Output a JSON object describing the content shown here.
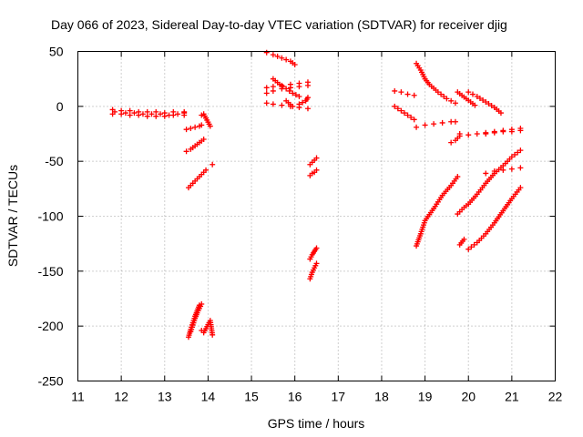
{
  "chart_data": {
    "type": "scatter",
    "title": "Day 066 of 2023, Sidereal Day-to-day VTEC variation (SDTVAR) for receiver djig",
    "xlabel": "GPS time / hours",
    "ylabel": "SDTVAR / TECUs",
    "xlim": [
      11,
      22
    ],
    "ylim": [
      -250,
      50
    ],
    "xticks": [
      11,
      12,
      13,
      14,
      15,
      16,
      17,
      18,
      19,
      20,
      21,
      22
    ],
    "yticks": [
      -250,
      -200,
      -150,
      -100,
      -50,
      0,
      50
    ],
    "grid": true,
    "marker": "+",
    "color": "#ff0000",
    "series": [
      {
        "name": "s01",
        "x": [
          11.8,
          12.0,
          12.2,
          12.4,
          12.6,
          12.8,
          13.0,
          13.2,
          13.45
        ],
        "y": [
          -3,
          -4,
          -4,
          -5,
          -5,
          -5,
          -6,
          -5,
          -5
        ]
      },
      {
        "name": "s02",
        "x": [
          11.8,
          12.0,
          12.2,
          12.4,
          12.6,
          12.8,
          13.0,
          13.2,
          13.45
        ],
        "y": [
          -7,
          -7,
          -8,
          -8,
          -9,
          -9,
          -9,
          -8,
          -8
        ]
      },
      {
        "name": "s03",
        "x": [
          11.85,
          12.1,
          12.3,
          12.5,
          12.7,
          12.9,
          13.1,
          13.3,
          13.45
        ],
        "y": [
          -5,
          -6,
          -6,
          -7,
          -7,
          -7,
          -8,
          -7,
          -6
        ]
      },
      {
        "name": "s04",
        "x": [
          13.5,
          13.6,
          13.7,
          13.8,
          13.85
        ],
        "y": [
          -21,
          -20,
          -19,
          -18,
          -17
        ]
      },
      {
        "name": "s05",
        "x": [
          13.5,
          13.6,
          13.7,
          13.8,
          13.9
        ],
        "y": [
          -41,
          -39,
          -36,
          -33,
          -30
        ]
      },
      {
        "name": "s06",
        "x": [
          13.85,
          13.9,
          14.05
        ],
        "y": [
          -8,
          -7,
          -18
        ]
      },
      {
        "name": "s07",
        "x": [
          13.55,
          13.65,
          13.75,
          13.85,
          13.95
        ],
        "y": [
          -74,
          -70,
          -66,
          -62,
          -58
        ]
      },
      {
        "name": "s08",
        "x": [
          14.1
        ],
        "y": [
          -53
        ]
      },
      {
        "name": "s09",
        "x": [
          13.55,
          13.6,
          13.65,
          13.7,
          13.75,
          13.8
        ],
        "y": [
          -210,
          -203,
          -197,
          -191,
          -186,
          -181
        ]
      },
      {
        "name": "s10",
        "x": [
          13.6,
          13.65,
          13.7,
          13.75,
          13.8,
          13.85
        ],
        "y": [
          -205,
          -199,
          -193,
          -188,
          -184,
          -180
        ]
      },
      {
        "name": "s11",
        "x": [
          13.85,
          13.9,
          14.05,
          14.1
        ],
        "y": [
          -204,
          -206,
          -195,
          -208
        ]
      },
      {
        "name": "s12",
        "x": [
          15.35,
          15.5,
          15.7,
          15.9,
          16.0
        ],
        "y": [
          49,
          47,
          44,
          41,
          38
        ]
      },
      {
        "name": "s13",
        "x": [
          15.35,
          15.5,
          15.7,
          15.9,
          16.1,
          16.3
        ],
        "y": [
          12,
          14,
          16,
          17,
          18,
          19
        ]
      },
      {
        "name": "s14",
        "x": [
          15.35,
          15.5,
          15.7,
          15.9,
          16.1,
          16.3
        ],
        "y": [
          17,
          18,
          19,
          20,
          21,
          22
        ]
      },
      {
        "name": "s15",
        "x": [
          15.5,
          15.65,
          15.8,
          15.95,
          16.1
        ],
        "y": [
          25,
          20,
          16,
          12,
          9
        ]
      },
      {
        "name": "s16",
        "x": [
          15.35,
          15.5,
          15.7,
          15.9,
          16.1,
          16.3
        ],
        "y": [
          3,
          2,
          1,
          0,
          -1,
          -2
        ]
      },
      {
        "name": "s17",
        "x": [
          15.8,
          15.95,
          16.1,
          16.25,
          16.3
        ],
        "y": [
          5,
          0,
          2,
          5,
          8
        ]
      },
      {
        "name": "s18",
        "x": [
          16.35,
          16.4,
          16.45,
          16.5
        ],
        "y": [
          -53,
          -51,
          -49,
          -47
        ]
      },
      {
        "name": "s19",
        "x": [
          16.35,
          16.4,
          16.45,
          16.5
        ],
        "y": [
          -63,
          -61,
          -60,
          -58
        ]
      },
      {
        "name": "s20",
        "x": [
          16.35,
          16.4,
          16.45,
          16.5
        ],
        "y": [
          -139,
          -135,
          -132,
          -129
        ]
      },
      {
        "name": "s21",
        "x": [
          16.35,
          16.4,
          16.45,
          16.5
        ],
        "y": [
          -157,
          -151,
          -147,
          -143
        ]
      },
      {
        "name": "s22",
        "x": [
          18.3,
          18.45,
          18.6,
          18.75
        ],
        "y": [
          14,
          13,
          11,
          10
        ]
      },
      {
        "name": "s23",
        "x": [
          18.3,
          18.45,
          18.6,
          18.75
        ],
        "y": [
          0,
          -4,
          -8,
          -12
        ]
      },
      {
        "name": "s24",
        "x": [
          18.8,
          18.9,
          19.0,
          19.1,
          19.3,
          19.5,
          19.7
        ],
        "y": [
          39,
          33,
          25,
          20,
          13,
          7,
          3
        ]
      },
      {
        "name": "s25",
        "x": [
          18.8,
          19.0,
          19.2,
          19.4,
          19.6,
          19.7
        ],
        "y": [
          -19,
          -17,
          -16,
          -15,
          -14,
          -14
        ]
      },
      {
        "name": "s26",
        "x": [
          19.6,
          19.7,
          19.8
        ],
        "y": [
          -33,
          -31,
          -27
        ]
      },
      {
        "name": "s27",
        "x": [
          19.8,
          20.0,
          20.2,
          20.4,
          20.6,
          20.8,
          21.0,
          21.2
        ],
        "y": [
          -25,
          -26,
          -25,
          -24,
          -23,
          -22,
          -21,
          -20
        ]
      },
      {
        "name": "s28",
        "x": [
          19.75,
          19.85,
          19.95,
          20.05,
          20.15
        ],
        "y": [
          13,
          10,
          7,
          4,
          1
        ]
      },
      {
        "name": "s29",
        "x": [
          20.0,
          20.2,
          20.4,
          20.6,
          20.75
        ],
        "y": [
          13,
          9,
          4,
          -1,
          -6
        ]
      },
      {
        "name": "s30",
        "x": [
          20.4,
          20.6,
          20.8,
          21.0,
          21.2
        ],
        "y": [
          -25,
          -24,
          -23,
          -23,
          -22
        ]
      },
      {
        "name": "s31",
        "x": [
          20.4,
          20.6,
          20.8,
          21.0,
          21.2
        ],
        "y": [
          -61,
          -59,
          -58,
          -57,
          -56
        ]
      },
      {
        "name": "s32",
        "x": [
          18.8,
          18.9,
          19.0,
          19.2,
          19.4,
          19.6,
          19.75
        ],
        "y": [
          -127,
          -116,
          -104,
          -93,
          -81,
          -72,
          -64
        ]
      },
      {
        "name": "s33",
        "x": [
          19.75,
          19.9,
          20.0,
          20.2,
          20.4,
          20.6,
          20.8,
          21.0,
          21.2
        ],
        "y": [
          -98,
          -92,
          -89,
          -80,
          -70,
          -61,
          -54,
          -46,
          -40
        ]
      },
      {
        "name": "s34",
        "x": [
          19.8,
          19.9
        ],
        "y": [
          -126,
          -121
        ]
      },
      {
        "name": "s35",
        "x": [
          20.0,
          20.2,
          20.4,
          20.6,
          20.8,
          21.0,
          21.2
        ],
        "y": [
          -130,
          -124,
          -116,
          -106,
          -95,
          -84,
          -74
        ]
      }
    ]
  }
}
